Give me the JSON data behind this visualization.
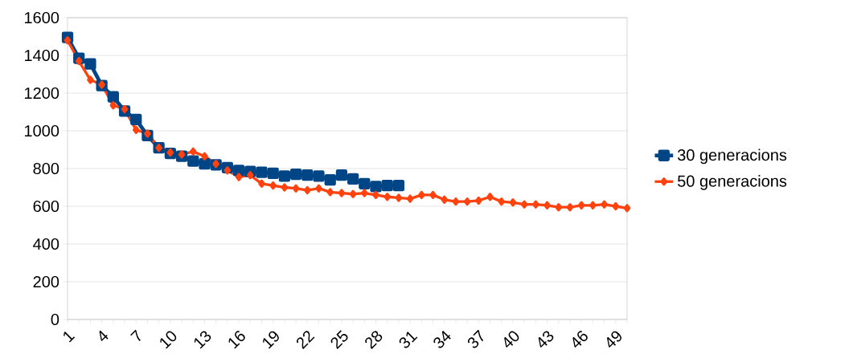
{
  "chart_data": {
    "type": "line",
    "categories": [
      "1",
      null,
      null,
      "4",
      null,
      null,
      "7",
      null,
      null,
      "10",
      null,
      null,
      "13",
      null,
      null,
      "16",
      null,
      null,
      "19",
      null,
      null,
      "22",
      null,
      null,
      "25",
      null,
      null,
      "28",
      null,
      null,
      "31",
      null,
      null,
      "34",
      null,
      null,
      "37",
      null,
      null,
      "40",
      null,
      null,
      "43",
      null,
      null,
      "46",
      null,
      null,
      "49",
      null
    ],
    "series": [
      {
        "name": "30 generacions",
        "color": "#004586",
        "marker": "square",
        "values": [
          1495,
          1385,
          1355,
          1240,
          1180,
          1105,
          1060,
          975,
          910,
          880,
          865,
          840,
          825,
          820,
          805,
          790,
          785,
          780,
          775,
          760,
          770,
          765,
          760,
          740,
          765,
          745,
          720,
          705,
          710,
          710,
          null,
          null,
          null,
          null,
          null,
          null,
          null,
          null,
          null,
          null,
          null,
          null,
          null,
          null,
          null,
          null,
          null,
          null,
          null,
          null
        ]
      },
      {
        "name": "50 generacions",
        "color": "#ff420e",
        "marker": "diamond",
        "values": [
          1480,
          1370,
          1270,
          1245,
          1135,
          1115,
          1005,
          985,
          910,
          885,
          875,
          890,
          865,
          825,
          790,
          755,
          765,
          720,
          710,
          700,
          695,
          685,
          695,
          675,
          670,
          665,
          670,
          660,
          650,
          645,
          640,
          660,
          660,
          635,
          625,
          625,
          630,
          650,
          625,
          620,
          610,
          610,
          605,
          595,
          595,
          605,
          605,
          610,
          600,
          590
        ]
      }
    ],
    "ylim": [
      0,
      1600
    ],
    "yticks": [
      0,
      200,
      400,
      600,
      800,
      1000,
      1200,
      1400,
      1600
    ],
    "grid": "y",
    "legend": "right",
    "line_style": "solid"
  }
}
